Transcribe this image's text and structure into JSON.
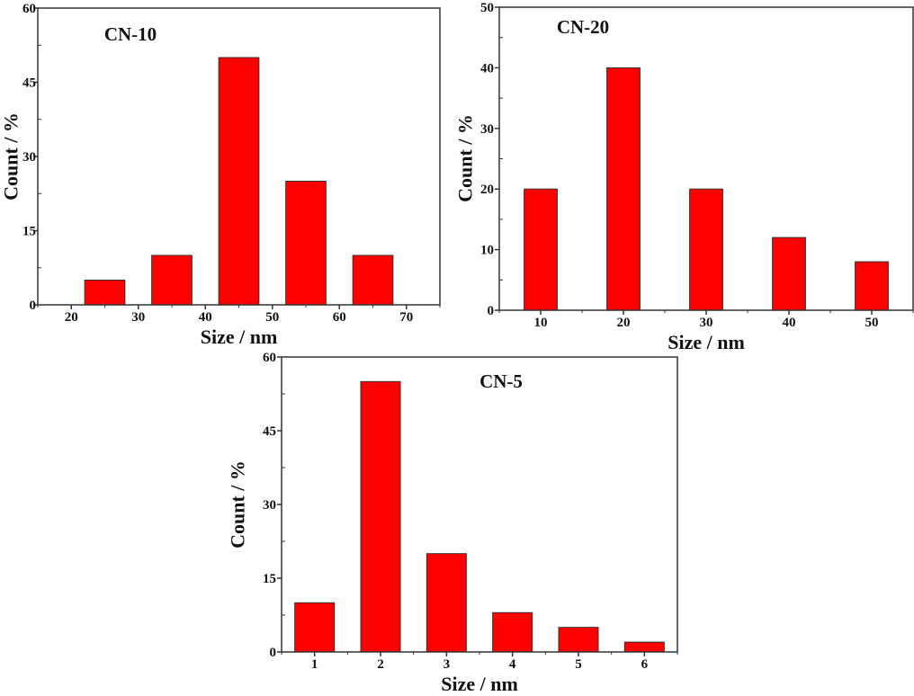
{
  "chart_data": [
    {
      "type": "bar",
      "title": "CN-10",
      "xlabel": "Size / nm",
      "ylabel": "Count / %",
      "categories": [
        25,
        35,
        45,
        55,
        65
      ],
      "values": [
        5,
        10,
        50,
        25,
        10
      ],
      "bar_width": 6,
      "xlim": [
        15,
        75
      ],
      "ylim": [
        0,
        60
      ],
      "xticks": [
        20,
        30,
        40,
        50,
        60,
        70
      ],
      "yticks": [
        0,
        15,
        30,
        45,
        60
      ],
      "grid": false,
      "bar_color": "#ff0000"
    },
    {
      "type": "bar",
      "title": "CN-20",
      "xlabel": "Size / nm",
      "ylabel": "Count / %",
      "categories": [
        10,
        20,
        30,
        40,
        50
      ],
      "values": [
        20,
        40,
        20,
        12,
        8
      ],
      "bar_width": 4,
      "xlim": [
        5,
        55
      ],
      "ylim": [
        0,
        50
      ],
      "xticks": [
        10,
        20,
        30,
        40,
        50
      ],
      "yticks": [
        0,
        10,
        20,
        30,
        40,
        50
      ],
      "grid": false,
      "bar_color": "#ff0000"
    },
    {
      "type": "bar",
      "title": "CN-5",
      "xlabel": "Size / nm",
      "ylabel": "Count / %",
      "categories": [
        1,
        2,
        3,
        4,
        5,
        6
      ],
      "values": [
        10,
        55,
        20,
        8,
        5,
        2
      ],
      "bar_width": 0.6,
      "xlim": [
        0.5,
        6.5
      ],
      "ylim": [
        0,
        60
      ],
      "xticks": [
        1,
        2,
        3,
        4,
        5,
        6
      ],
      "yticks": [
        0,
        15,
        30,
        45,
        60
      ],
      "grid": false,
      "bar_color": "#ff0000"
    }
  ]
}
